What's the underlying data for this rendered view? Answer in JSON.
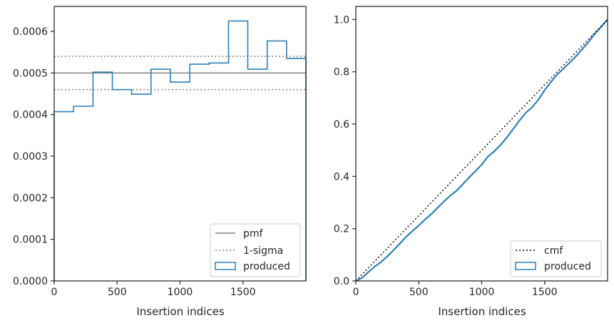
{
  "colors": {
    "produced": "#2f7fb5",
    "pmf": "#808080",
    "sigma": "#808080",
    "cmf": "#000000",
    "axes": "#262626"
  },
  "chart_data": [
    {
      "type": "line",
      "xlabel": "Insertion indices",
      "ylabel": "",
      "xlim": [
        0,
        2000
      ],
      "ylim": [
        0,
        0.00066
      ],
      "xticks": [
        0,
        500,
        1000,
        1500
      ],
      "xtick_labels": [
        "0",
        "500",
        "1000",
        "1500"
      ],
      "yticks": [
        0,
        0.0001,
        0.0002,
        0.0003,
        0.0004,
        0.0005,
        0.0006
      ],
      "ytick_labels": [
        "0.0000",
        "0.0001",
        "0.0002",
        "0.0003",
        "0.0004",
        "0.0005",
        "0.0006"
      ],
      "legend_position": "lower-right",
      "legend": [
        "pmf",
        "1-sigma",
        "produced"
      ],
      "pmf": 0.0005,
      "sigma_band": [
        0.00046,
        0.00054
      ],
      "histogram": {
        "name": "produced",
        "bin_edges": [
          0,
          154,
          308,
          462,
          615,
          769,
          923,
          1077,
          1231,
          1385,
          1538,
          1692,
          1846,
          2000
        ],
        "values": [
          0.000407,
          0.00042,
          0.000502,
          0.00046,
          0.000449,
          0.000509,
          0.000478,
          0.000521,
          0.000524,
          0.000625,
          0.000509,
          0.000577,
          0.000535
        ]
      }
    },
    {
      "type": "line",
      "xlabel": "Insertion indices",
      "ylabel": "",
      "xlim": [
        0,
        2000
      ],
      "ylim": [
        0,
        1.05
      ],
      "xticks": [
        0,
        500,
        1000,
        1500
      ],
      "xtick_labels": [
        "0",
        "500",
        "1000",
        "1500"
      ],
      "yticks": [
        0,
        0.2,
        0.4,
        0.6,
        0.8,
        1.0
      ],
      "ytick_labels": [
        "0.0",
        "0.2",
        "0.4",
        "0.6",
        "0.8",
        "1.0"
      ],
      "legend_position": "lower-right",
      "legend": [
        "cmf",
        "produced"
      ],
      "cmf": {
        "x": [
          0,
          2000
        ],
        "y": [
          0,
          1
        ]
      },
      "produced": {
        "x": [
          0,
          50,
          100,
          150,
          200,
          250,
          300,
          350,
          400,
          450,
          500,
          550,
          600,
          650,
          700,
          750,
          800,
          850,
          900,
          950,
          1000,
          1050,
          1100,
          1150,
          1200,
          1250,
          1300,
          1350,
          1400,
          1450,
          1500,
          1550,
          1600,
          1650,
          1700,
          1750,
          1800,
          1850,
          1900,
          1950,
          2000
        ],
        "y": [
          0,
          0.012,
          0.034,
          0.055,
          0.072,
          0.094,
          0.118,
          0.143,
          0.169,
          0.191,
          0.212,
          0.235,
          0.256,
          0.28,
          0.304,
          0.326,
          0.345,
          0.37,
          0.396,
          0.42,
          0.445,
          0.476,
          0.496,
          0.52,
          0.549,
          0.581,
          0.614,
          0.643,
          0.664,
          0.693,
          0.73,
          0.761,
          0.79,
          0.812,
          0.836,
          0.86,
          0.887,
          0.915,
          0.946,
          0.972,
          1.0
        ]
      }
    }
  ]
}
